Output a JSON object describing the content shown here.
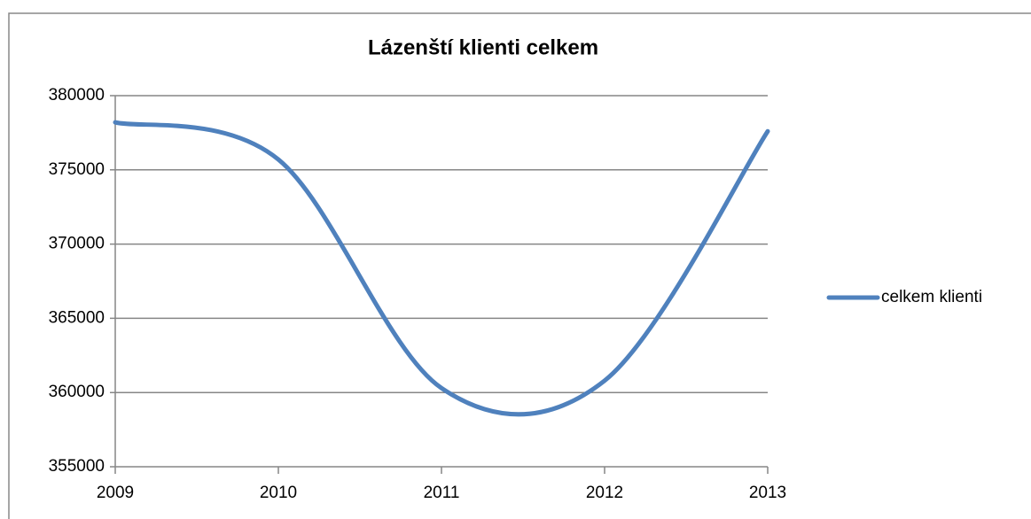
{
  "chart_data": {
    "type": "line",
    "title": "Lázenští klienti celkem",
    "x": [
      2009,
      2010,
      2011,
      2012,
      2013
    ],
    "series": [
      {
        "name": "celkem klienti",
        "color": "#4f81bd",
        "values": [
          378200,
          375700,
          360300,
          360800,
          377600
        ]
      }
    ],
    "xlim": [
      2009,
      2013
    ],
    "xticks": [
      2009,
      2010,
      2011,
      2012,
      2013
    ],
    "ylim": [
      355000,
      380000
    ],
    "yticks": [
      355000,
      360000,
      365000,
      370000,
      375000,
      380000
    ],
    "grid": true,
    "smooth": true,
    "legend": "right"
  }
}
